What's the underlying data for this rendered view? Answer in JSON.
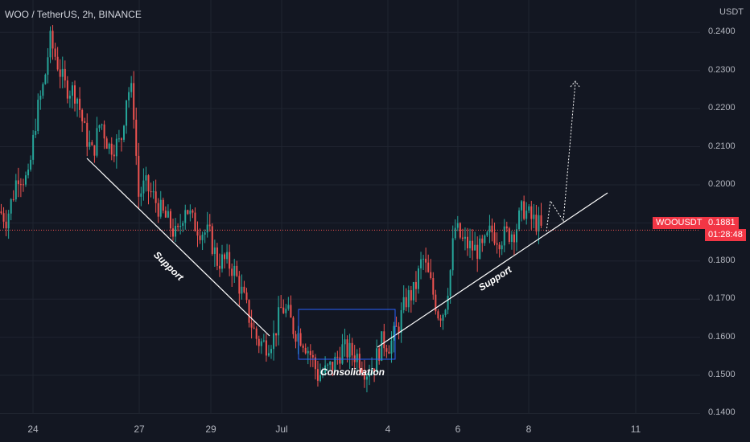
{
  "header": {
    "title": "WOO / TetherUS, 2h, BINANCE",
    "currency": "USDT"
  },
  "price_tag": {
    "symbol": "WOOUSDT",
    "price": "0.1881",
    "countdown": "01:28:48",
    "symbol_bg": "#f23645",
    "price_bg": "#f23645"
  },
  "annotations": {
    "support_left": "Support",
    "support_right": "Support",
    "consolidation": "Consolidation"
  },
  "colors": {
    "background": "#131722",
    "up": "#26a69a",
    "down": "#ef5350",
    "line": "#ffffff",
    "box": "#2962ff",
    "grid": "#1f2430"
  },
  "chart_data": {
    "type": "candlestick",
    "title": "WOO / TetherUS, 2h, BINANCE",
    "ylabel": "USDT",
    "ylim": [
      0.1325,
      0.2485
    ],
    "y_ticks": [
      "0.2400",
      "0.2300",
      "0.2200",
      "0.2100",
      "0.2000",
      "0.1900",
      "0.1800",
      "0.1700",
      "0.1600",
      "0.1500",
      "0.1400"
    ],
    "x_ticks": [
      "24",
      "27",
      "29",
      "Jul",
      "4",
      "6",
      "8",
      "11"
    ],
    "last_price": 0.1881,
    "path_anchors": [
      [
        0,
        0.193
      ],
      [
        8,
        0.191
      ],
      [
        16,
        0.197
      ],
      [
        22,
        0.203
      ],
      [
        35,
        0.201
      ],
      [
        45,
        0.218
      ],
      [
        55,
        0.227
      ],
      [
        62,
        0.238
      ],
      [
        70,
        0.233
      ],
      [
        80,
        0.226
      ],
      [
        95,
        0.224
      ],
      [
        105,
        0.214
      ],
      [
        115,
        0.208
      ],
      [
        125,
        0.217
      ],
      [
        135,
        0.21
      ],
      [
        150,
        0.211
      ],
      [
        158,
        0.225
      ],
      [
        165,
        0.224
      ],
      [
        172,
        0.197
      ],
      [
        180,
        0.2
      ],
      [
        190,
        0.197
      ],
      [
        200,
        0.193
      ],
      [
        210,
        0.19
      ],
      [
        220,
        0.186
      ],
      [
        230,
        0.195
      ],
      [
        240,
        0.19
      ],
      [
        250,
        0.188
      ],
      [
        260,
        0.187
      ],
      [
        270,
        0.18
      ],
      [
        280,
        0.18
      ],
      [
        290,
        0.178
      ],
      [
        300,
        0.172
      ],
      [
        310,
        0.165
      ],
      [
        320,
        0.159
      ],
      [
        330,
        0.158
      ],
      [
        340,
        0.16
      ],
      [
        350,
        0.168
      ],
      [
        358,
        0.166
      ],
      [
        365,
        0.162
      ],
      [
        375,
        0.16
      ],
      [
        385,
        0.156
      ],
      [
        395,
        0.15
      ],
      [
        405,
        0.151
      ],
      [
        415,
        0.153
      ],
      [
        425,
        0.157
      ],
      [
        435,
        0.156
      ],
      [
        445,
        0.155
      ],
      [
        455,
        0.151
      ],
      [
        465,
        0.153
      ],
      [
        475,
        0.159
      ],
      [
        485,
        0.158
      ],
      [
        495,
        0.163
      ],
      [
        505,
        0.17
      ],
      [
        515,
        0.172
      ],
      [
        525,
        0.181
      ],
      [
        535,
        0.174
      ],
      [
        545,
        0.166
      ],
      [
        552,
        0.167
      ],
      [
        560,
        0.178
      ],
      [
        565,
        0.189
      ],
      [
        575,
        0.185
      ],
      [
        590,
        0.183
      ],
      [
        600,
        0.183
      ],
      [
        610,
        0.188
      ],
      [
        620,
        0.186
      ],
      [
        630,
        0.187
      ],
      [
        640,
        0.188
      ],
      [
        650,
        0.194
      ],
      [
        660,
        0.191
      ],
      [
        668,
        0.19
      ],
      [
        673,
        0.188
      ]
    ]
  }
}
